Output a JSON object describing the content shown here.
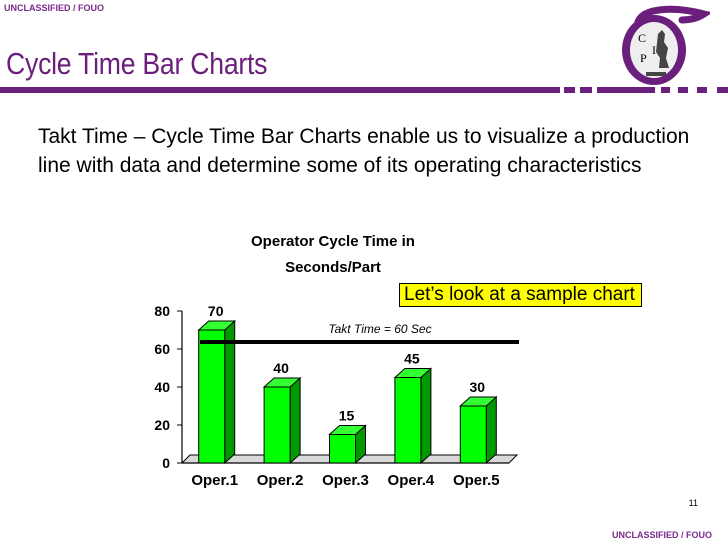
{
  "slide": {
    "classification_top": "UNCLASSIFIED / FOUO",
    "classification_bottom": "UNCLASSIFIED / FOUO",
    "title": "Cycle Time Bar Charts",
    "body_text": "Takt Time – Cycle Time Bar Charts enable us to visualize a production line with data and determine some of its operating characteristics",
    "callout": "Let’s look at a  sample chart",
    "page_number": "11",
    "logo": {
      "icon": "emblem-logo-icon",
      "letters": "CPI"
    }
  },
  "colors": {
    "accent_purple": "#6b1f7c",
    "bar_fill": "#00ff00",
    "bar_side": "#009900",
    "callout_bg": "#ffff00"
  },
  "chart_data": {
    "type": "bar",
    "title_line1": "Operator Cycle Time in",
    "title_line2": "Seconds/Part",
    "categories": [
      "Oper.1",
      "Oper.2",
      "Oper.3",
      "Oper.4",
      "Oper.5"
    ],
    "values": [
      70,
      40,
      15,
      45,
      30
    ],
    "ylim": [
      0,
      80
    ],
    "yticks": [
      0,
      20,
      40,
      60,
      80
    ],
    "reference_line": {
      "value": 60,
      "label": "Takt Time = 60 Sec"
    },
    "grid": false,
    "legend": "none"
  }
}
